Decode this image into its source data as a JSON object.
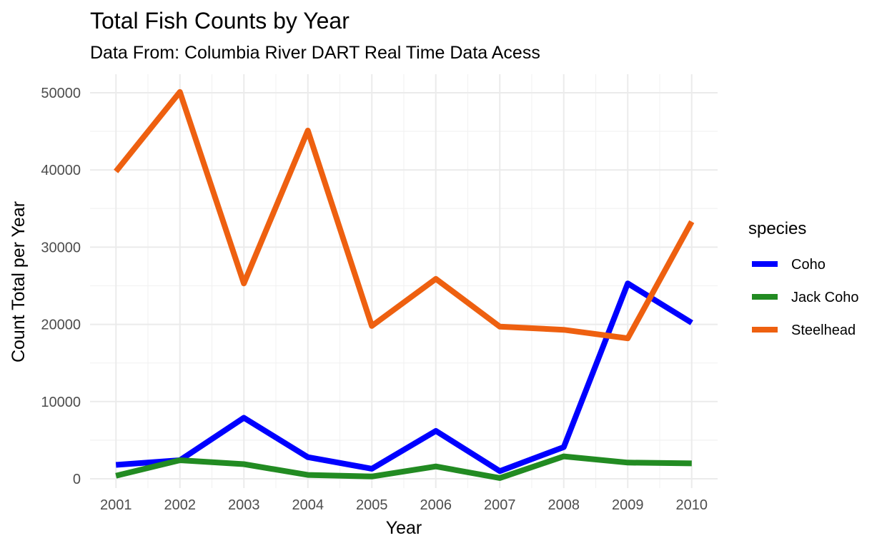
{
  "chart_data": {
    "type": "line",
    "title": "Total Fish Counts by Year",
    "subtitle": "Data From: Columbia River DART Real Time Data Acess",
    "xlabel": "Year",
    "ylabel": "Count Total per Year",
    "x": [
      2001,
      2002,
      2003,
      2004,
      2005,
      2006,
      2007,
      2008,
      2009,
      2010
    ],
    "x_ticks": [
      "2001",
      "2002",
      "2003",
      "2004",
      "2005",
      "2006",
      "2007",
      "2008",
      "2009",
      "2010"
    ],
    "y_ticks": [
      "0",
      "10000",
      "20000",
      "30000",
      "40000",
      "50000"
    ],
    "ylim": [
      0,
      50000
    ],
    "grid": true,
    "legend": {
      "title": "species",
      "position": "right"
    },
    "series": [
      {
        "name": "Coho",
        "color": "#0000ff",
        "values": [
          1800,
          2400,
          7900,
          2800,
          1300,
          6200,
          1000,
          4100,
          25300,
          20200
        ]
      },
      {
        "name": "Jack Coho",
        "color": "#228b22",
        "values": [
          400,
          2400,
          1900,
          500,
          300,
          1600,
          100,
          2900,
          2100,
          2000
        ]
      },
      {
        "name": "Steelhead",
        "color": "#ee6010",
        "values": [
          39800,
          50100,
          25300,
          45100,
          19800,
          25900,
          19700,
          19300,
          18200,
          33300
        ]
      }
    ]
  }
}
